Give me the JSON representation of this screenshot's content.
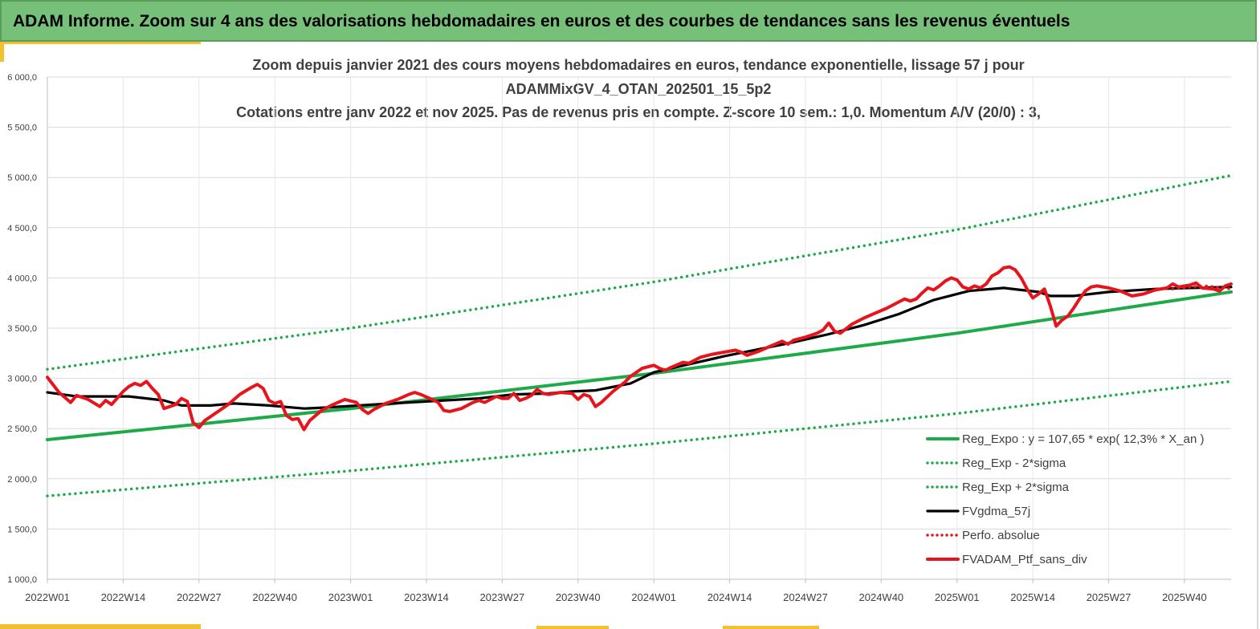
{
  "header": {
    "title": "ADAM Informe. Zoom sur 4 ans des valorisations hebdomadaires en euros et des courbes de tendances sans les revenus éventuels"
  },
  "colors": {
    "banner": "#77c079",
    "accent": "#f2c12e",
    "trend": "#1faa4a",
    "sma": "#000000",
    "portfolio": "#e8141b"
  },
  "chart_data": {
    "type": "line",
    "title_lines": [
      "Zoom depuis janvier 2021 des cours moyens hebdomadaires  en euros, tendance exponentielle, lissage 57 j pour",
      "ADAMMixGV_4_OTAN_202501_15_5p2",
      "Cotations entre janv 2022 et nov 2025. Pas de revenus pris en compte. Z-score 10 sem.: 1,0. Momentum A/V (20/0) : 3,"
    ],
    "ylim": [
      1000,
      6000
    ],
    "yticks": [
      1000,
      1500,
      2000,
      2500,
      3000,
      3500,
      4000,
      4500,
      5000,
      5500,
      6000
    ],
    "ytick_labels": [
      "1 000,0",
      "1 500,0",
      "2 000,0",
      "2 500,0",
      "3 000,0",
      "3 500,0",
      "4 000,0",
      "4 500,0",
      "5 000,0",
      "5 500,0",
      "6 000,0"
    ],
    "x_unit": "weeks since 2022W01",
    "xlim": [
      0,
      203
    ],
    "xticks": [
      0,
      13,
      26,
      39,
      52,
      65,
      78,
      91,
      104,
      117,
      130,
      143,
      156,
      169,
      182,
      195
    ],
    "xtick_labels": [
      "2022W01",
      "2022W14",
      "2022W27",
      "2022W40",
      "2023W01",
      "2023W14",
      "2023W27",
      "2023W40",
      "2024W01",
      "2024W14",
      "2024W27",
      "2024W40",
      "2025W01",
      "2025W14",
      "2025W27",
      "2025W40"
    ],
    "series": [
      {
        "name": "Reg_Expo : y = 107,65 * exp( 12,3% *  X_an )",
        "style": "solid-thick",
        "color": "#1faa4a",
        "points": [
          [
            0,
            2390
          ],
          [
            52,
            2700
          ],
          [
            104,
            3050
          ],
          [
            156,
            3450
          ],
          [
            203,
            3860
          ]
        ]
      },
      {
        "name": "Reg_Exp - 2*sigma",
        "style": "dotted",
        "color": "#1faa4a",
        "points": [
          [
            0,
            1830
          ],
          [
            52,
            2080
          ],
          [
            104,
            2350
          ],
          [
            156,
            2650
          ],
          [
            203,
            2970
          ]
        ]
      },
      {
        "name": "Reg_Exp + 2*sigma",
        "style": "dotted",
        "color": "#1faa4a",
        "points": [
          [
            0,
            3090
          ],
          [
            52,
            3500
          ],
          [
            104,
            3960
          ],
          [
            156,
            4480
          ],
          [
            203,
            5020
          ]
        ]
      },
      {
        "name": "FVgdma_57j",
        "style": "solid",
        "color": "#000000",
        "points": [
          [
            0,
            2860
          ],
          [
            5,
            2820
          ],
          [
            14,
            2820
          ],
          [
            20,
            2780
          ],
          [
            23,
            2730
          ],
          [
            28,
            2730
          ],
          [
            32,
            2750
          ],
          [
            38,
            2730
          ],
          [
            44,
            2700
          ],
          [
            48,
            2710
          ],
          [
            56,
            2740
          ],
          [
            62,
            2760
          ],
          [
            68,
            2780
          ],
          [
            74,
            2800
          ],
          [
            80,
            2840
          ],
          [
            86,
            2850
          ],
          [
            90,
            2870
          ],
          [
            94,
            2880
          ],
          [
            100,
            2950
          ],
          [
            104,
            3060
          ],
          [
            110,
            3140
          ],
          [
            116,
            3220
          ],
          [
            122,
            3290
          ],
          [
            128,
            3360
          ],
          [
            134,
            3440
          ],
          [
            140,
            3530
          ],
          [
            146,
            3640
          ],
          [
            152,
            3780
          ],
          [
            158,
            3870
          ],
          [
            164,
            3900
          ],
          [
            170,
            3860
          ],
          [
            172,
            3820
          ],
          [
            176,
            3820
          ],
          [
            182,
            3860
          ],
          [
            190,
            3890
          ],
          [
            196,
            3900
          ],
          [
            203,
            3910
          ]
        ]
      },
      {
        "name": "Perfo. absolue",
        "style": "dotted",
        "color": "#e8141b",
        "points": [
          [
            193,
            3890
          ],
          [
            196,
            3910
          ],
          [
            199,
            3920
          ],
          [
            203,
            3890
          ]
        ]
      },
      {
        "name": "FVADAM_Ptf_sans_div",
        "style": "solid-thick",
        "color": "#e8141b",
        "points": [
          [
            0,
            3010
          ],
          [
            2,
            2860
          ],
          [
            4,
            2760
          ],
          [
            5,
            2830
          ],
          [
            7,
            2790
          ],
          [
            9,
            2720
          ],
          [
            10,
            2780
          ],
          [
            11,
            2740
          ],
          [
            13,
            2870
          ],
          [
            14,
            2920
          ],
          [
            15,
            2950
          ],
          [
            16,
            2930
          ],
          [
            17,
            2970
          ],
          [
            18,
            2900
          ],
          [
            19,
            2840
          ],
          [
            20,
            2700
          ],
          [
            21,
            2720
          ],
          [
            22,
            2740
          ],
          [
            23,
            2800
          ],
          [
            24,
            2770
          ],
          [
            25,
            2560
          ],
          [
            26,
            2510
          ],
          [
            27,
            2580
          ],
          [
            29,
            2660
          ],
          [
            31,
            2740
          ],
          [
            33,
            2840
          ],
          [
            35,
            2910
          ],
          [
            36,
            2940
          ],
          [
            37,
            2900
          ],
          [
            38,
            2780
          ],
          [
            39,
            2750
          ],
          [
            40,
            2770
          ],
          [
            41,
            2630
          ],
          [
            42,
            2590
          ],
          [
            43,
            2600
          ],
          [
            44,
            2490
          ],
          [
            45,
            2580
          ],
          [
            47,
            2680
          ],
          [
            49,
            2740
          ],
          [
            51,
            2790
          ],
          [
            53,
            2760
          ],
          [
            54,
            2690
          ],
          [
            55,
            2650
          ],
          [
            56,
            2690
          ],
          [
            58,
            2750
          ],
          [
            60,
            2790
          ],
          [
            62,
            2840
          ],
          [
            63,
            2860
          ],
          [
            64,
            2840
          ],
          [
            66,
            2790
          ],
          [
            67,
            2760
          ],
          [
            68,
            2680
          ],
          [
            69,
            2670
          ],
          [
            71,
            2700
          ],
          [
            73,
            2760
          ],
          [
            74,
            2780
          ],
          [
            75,
            2760
          ],
          [
            76,
            2790
          ],
          [
            77,
            2820
          ],
          [
            78,
            2800
          ],
          [
            79,
            2800
          ],
          [
            80,
            2850
          ],
          [
            81,
            2780
          ],
          [
            82,
            2800
          ],
          [
            83,
            2830
          ],
          [
            84,
            2890
          ],
          [
            85,
            2850
          ],
          [
            86,
            2840
          ],
          [
            88,
            2860
          ],
          [
            90,
            2850
          ],
          [
            91,
            2790
          ],
          [
            92,
            2840
          ],
          [
            93,
            2820
          ],
          [
            94,
            2720
          ],
          [
            95,
            2760
          ],
          [
            97,
            2870
          ],
          [
            99,
            2960
          ],
          [
            100,
            3020
          ],
          [
            102,
            3100
          ],
          [
            104,
            3130
          ],
          [
            105,
            3100
          ],
          [
            106,
            3080
          ],
          [
            107,
            3110
          ],
          [
            109,
            3160
          ],
          [
            110,
            3150
          ],
          [
            112,
            3210
          ],
          [
            114,
            3240
          ],
          [
            116,
            3260
          ],
          [
            118,
            3280
          ],
          [
            119,
            3260
          ],
          [
            120,
            3230
          ],
          [
            122,
            3270
          ],
          [
            124,
            3320
          ],
          [
            126,
            3370
          ],
          [
            127,
            3340
          ],
          [
            128,
            3380
          ],
          [
            130,
            3410
          ],
          [
            132,
            3450
          ],
          [
            133,
            3480
          ],
          [
            134,
            3550
          ],
          [
            135,
            3470
          ],
          [
            136,
            3450
          ],
          [
            138,
            3540
          ],
          [
            140,
            3600
          ],
          [
            142,
            3650
          ],
          [
            144,
            3700
          ],
          [
            146,
            3760
          ],
          [
            147,
            3790
          ],
          [
            148,
            3770
          ],
          [
            149,
            3790
          ],
          [
            150,
            3850
          ],
          [
            151,
            3900
          ],
          [
            152,
            3880
          ],
          [
            153,
            3920
          ],
          [
            154,
            3970
          ],
          [
            155,
            4000
          ],
          [
            156,
            3980
          ],
          [
            157,
            3910
          ],
          [
            158,
            3890
          ],
          [
            159,
            3920
          ],
          [
            160,
            3900
          ],
          [
            161,
            3940
          ],
          [
            162,
            4020
          ],
          [
            163,
            4050
          ],
          [
            164,
            4100
          ],
          [
            165,
            4110
          ],
          [
            166,
            4080
          ],
          [
            167,
            4000
          ],
          [
            168,
            3890
          ],
          [
            169,
            3800
          ],
          [
            170,
            3840
          ],
          [
            171,
            3890
          ],
          [
            172,
            3720
          ],
          [
            173,
            3520
          ],
          [
            174,
            3580
          ],
          [
            175,
            3620
          ],
          [
            176,
            3700
          ],
          [
            177,
            3790
          ],
          [
            178,
            3870
          ],
          [
            179,
            3910
          ],
          [
            180,
            3920
          ],
          [
            182,
            3900
          ],
          [
            184,
            3870
          ],
          [
            186,
            3820
          ],
          [
            188,
            3840
          ],
          [
            190,
            3880
          ],
          [
            192,
            3900
          ],
          [
            193,
            3940
          ],
          [
            194,
            3910
          ],
          [
            196,
            3930
          ],
          [
            197,
            3950
          ],
          [
            198,
            3900
          ],
          [
            200,
            3890
          ],
          [
            201,
            3870
          ],
          [
            202,
            3920
          ],
          [
            203,
            3940
          ]
        ]
      }
    ],
    "legend_position": "bottom-right"
  }
}
